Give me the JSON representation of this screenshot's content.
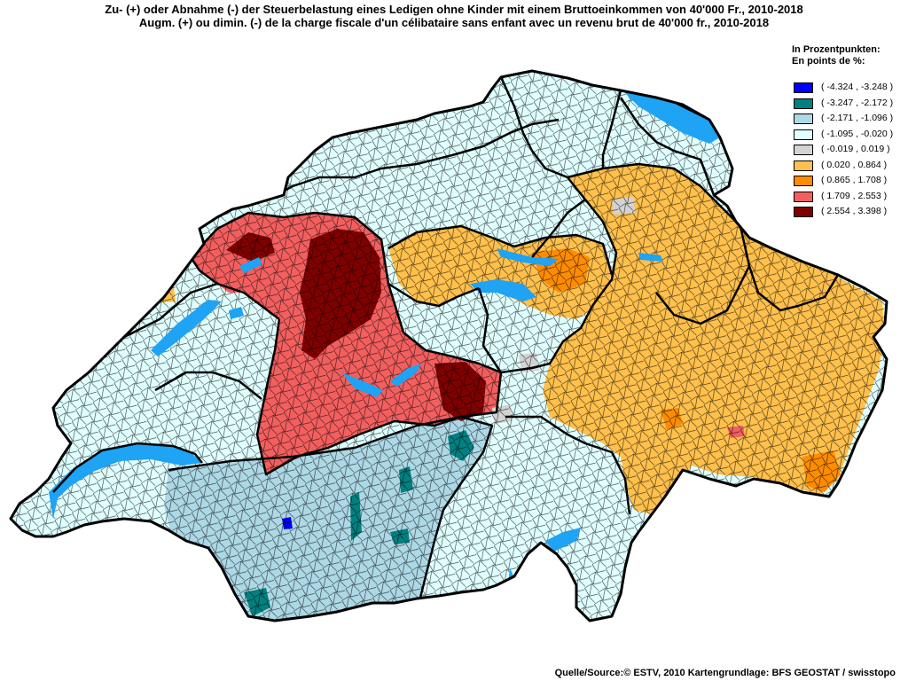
{
  "title": {
    "de": "Zu- (+) oder Abnahme (-) der Steuerbelastung eines Ledigen ohne Kinder mit einem Bruttoeinkommen von 40'000 Fr., 2010-2018",
    "fr": "Augm. (+) ou dimin. (-) de la charge fiscale d'un célibataire sans enfant avec un revenu brut de 40'000 fr., 2010-2018"
  },
  "legend": {
    "unit_de": "In Prozentpunkten:",
    "unit_fr": "En points de %:",
    "items": [
      {
        "range": "( -4.324 , -3.248 )",
        "color": "#0000ff"
      },
      {
        "range": "( -3.247 , -2.172 )",
        "color": "#008080"
      },
      {
        "range": "( -2.171 , -1.096 )",
        "color": "#add8e6"
      },
      {
        "range": "( -1.095 , -0.020 )",
        "color": "#e0ffff"
      },
      {
        "range": "( -0.019 , 0.019 )",
        "color": "#d3d3d3"
      },
      {
        "range": "( 0.020 , 0.864 )",
        "color": "#ffc04c"
      },
      {
        "range": "( 0.865 , 1.708 )",
        "color": "#ff8c00"
      },
      {
        "range": "( 1.709 , 2.553 )",
        "color": "#f35f5f"
      },
      {
        "range": "( 2.554 , 3.398 )",
        "color": "#800000"
      }
    ]
  },
  "colors": {
    "lakes": "#1ea3f5",
    "cantonal_borders": "#000000",
    "municipal_borders": "#000000"
  },
  "source": "Quelle/Source:© ESTV, 2010 Kartengrundlage: BFS GEOSTAT / swisstopo"
}
